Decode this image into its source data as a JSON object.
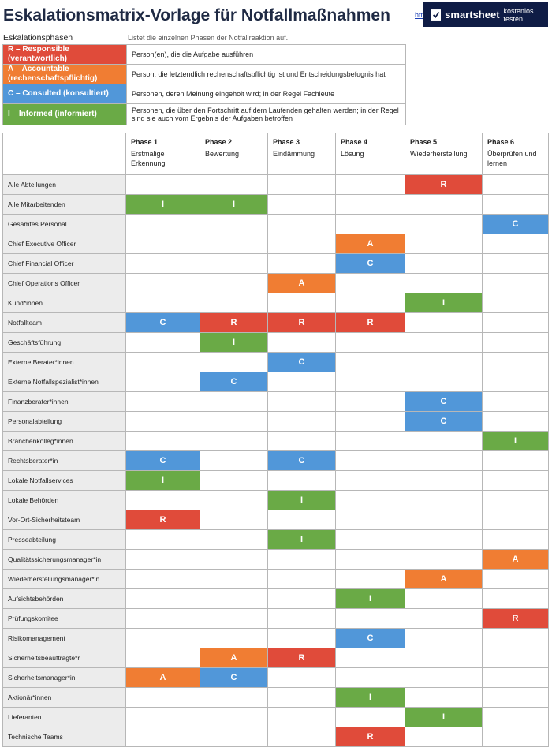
{
  "header": {
    "title": "Eskalationsmatrix-Vorlage für Notfallmaßnahmen",
    "link_text": "htt",
    "banner": {
      "brand": "smartsheet",
      "cta": "kostenlos testen"
    }
  },
  "colors": {
    "R": "#e04b3a",
    "A": "#f07d33",
    "C": "#5197d9",
    "I": "#6aaa46"
  },
  "legend": {
    "title": "Eskalationsphasen",
    "description": "Listet die einzelnen Phasen der Notfallreaktion auf.",
    "items": [
      {
        "code": "R",
        "label": "R – Responsible (verantwortlich)",
        "text": "Person(en), die die Aufgabe ausführen"
      },
      {
        "code": "A",
        "label": "A – Accountable (rechenschaftspflichtig)",
        "text": "Person, die letztendlich rechenschaftspflichtig ist und Entscheidungsbefugnis hat"
      },
      {
        "code": "C",
        "label": "C – Consulted (konsultiert)",
        "text": "Personen, deren Meinung eingeholt wird; in der Regel Fachleute"
      },
      {
        "code": "I",
        "label": "I – Informed (informiert)",
        "text": "Personen, die über den Fortschritt auf dem Laufenden gehalten werden; in der Regel sind sie auch vom Ergebnis der Aufgaben betroffen"
      }
    ]
  },
  "phases": [
    {
      "title": "Phase 1",
      "name": "Erstmalige Erkennung"
    },
    {
      "title": "Phase 2",
      "name": "Bewertung"
    },
    {
      "title": "Phase 3",
      "name": "Eindämmung"
    },
    {
      "title": "Phase 4",
      "name": "Lösung"
    },
    {
      "title": "Phase 5",
      "name": "Wiederherstellung"
    },
    {
      "title": "Phase 6",
      "name": "Überprüfen und lernen"
    }
  ],
  "rows": [
    {
      "role": "Alle Abteilungen",
      "cells": [
        "",
        "",
        "",
        "",
        "R",
        ""
      ]
    },
    {
      "role": "Alle Mitarbeitenden",
      "cells": [
        "I",
        "I",
        "",
        "",
        "",
        ""
      ]
    },
    {
      "role": "Gesamtes Personal",
      "cells": [
        "",
        "",
        "",
        "",
        "",
        "C"
      ]
    },
    {
      "role": "Chief Executive Officer",
      "cells": [
        "",
        "",
        "",
        "A",
        "",
        ""
      ]
    },
    {
      "role": "Chief Financial Officer",
      "cells": [
        "",
        "",
        "",
        "C",
        "",
        ""
      ]
    },
    {
      "role": "Chief Operations Officer",
      "cells": [
        "",
        "",
        "A",
        "",
        "",
        ""
      ]
    },
    {
      "role": "Kund*innen",
      "cells": [
        "",
        "",
        "",
        "",
        "I",
        ""
      ]
    },
    {
      "role": "Notfallteam",
      "cells": [
        "C",
        "R",
        "R",
        "R",
        "",
        ""
      ]
    },
    {
      "role": "Geschäftsführung",
      "cells": [
        "",
        "I",
        "",
        "",
        "",
        ""
      ]
    },
    {
      "role": "Externe Berater*innen",
      "cells": [
        "",
        "",
        "C",
        "",
        "",
        ""
      ]
    },
    {
      "role": "Externe Notfallspezialist*innen",
      "cells": [
        "",
        "C",
        "",
        "",
        "",
        ""
      ]
    },
    {
      "role": "Finanzberater*innen",
      "cells": [
        "",
        "",
        "",
        "",
        "C",
        ""
      ]
    },
    {
      "role": "Personalabteilung",
      "cells": [
        "",
        "",
        "",
        "",
        "C",
        ""
      ]
    },
    {
      "role": "Branchenkolleg*innen",
      "cells": [
        "",
        "",
        "",
        "",
        "",
        "I"
      ]
    },
    {
      "role": "Rechtsberater*in",
      "cells": [
        "C",
        "",
        "C",
        "",
        "",
        ""
      ]
    },
    {
      "role": "Lokale Notfallservices",
      "cells": [
        "I",
        "",
        "",
        "",
        "",
        ""
      ]
    },
    {
      "role": "Lokale Behörden",
      "cells": [
        "",
        "",
        "I",
        "",
        "",
        ""
      ]
    },
    {
      "role": "Vor-Ort-Sicherheitsteam",
      "cells": [
        "R",
        "",
        "",
        "",
        "",
        ""
      ]
    },
    {
      "role": "Presseabteilung",
      "cells": [
        "",
        "",
        "I",
        "",
        "",
        ""
      ]
    },
    {
      "role": "Qualitätssicherungsmanager*in",
      "cells": [
        "",
        "",
        "",
        "",
        "",
        "A"
      ]
    },
    {
      "role": "Wiederherstellungsmanager*in",
      "cells": [
        "",
        "",
        "",
        "",
        "A",
        ""
      ]
    },
    {
      "role": "Aufsichtsbehörden",
      "cells": [
        "",
        "",
        "",
        "I",
        "",
        ""
      ]
    },
    {
      "role": "Prüfungskomitee",
      "cells": [
        "",
        "",
        "",
        "",
        "",
        "R"
      ]
    },
    {
      "role": "Risikomanagement",
      "cells": [
        "",
        "",
        "",
        "C",
        "",
        ""
      ]
    },
    {
      "role": "Sicherheitsbeauftragte*r",
      "cells": [
        "",
        "A",
        "R",
        "",
        "",
        ""
      ]
    },
    {
      "role": "Sicherheitsmanager*in",
      "cells": [
        "A",
        "C",
        "",
        "",
        "",
        ""
      ]
    },
    {
      "role": "Aktionär*innen",
      "cells": [
        "",
        "",
        "",
        "I",
        "",
        ""
      ]
    },
    {
      "role": "Lieferanten",
      "cells": [
        "",
        "",
        "",
        "",
        "I",
        ""
      ]
    },
    {
      "role": "Technische Teams",
      "cells": [
        "",
        "",
        "",
        "R",
        "",
        ""
      ]
    }
  ]
}
